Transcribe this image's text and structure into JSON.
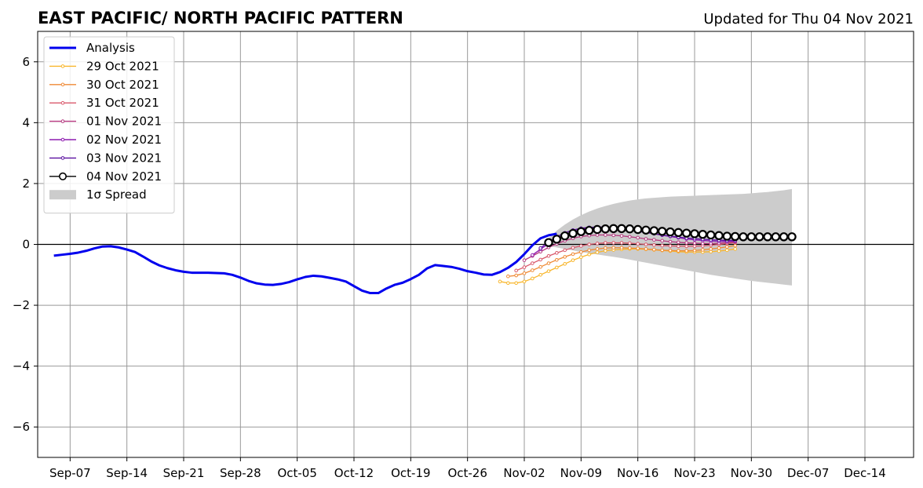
{
  "chart_data": {
    "type": "line",
    "title": "EAST PACIFIC/ NORTH PACIFIC PATTERN",
    "subtitle": "Updated for Thu 04 Nov 2021",
    "xlabel": "",
    "ylabel": "",
    "x_start": "2021-09-03",
    "x_end": "2021-12-20",
    "ylim": [
      -7,
      7
    ],
    "yticks": [
      -6,
      -4,
      -2,
      0,
      2,
      4,
      6
    ],
    "ytick_labels": [
      "−6",
      "−4",
      "−2",
      "0",
      "2",
      "4",
      "6"
    ],
    "xticks": [
      "2021-09-07",
      "2021-09-14",
      "2021-09-21",
      "2021-09-28",
      "2021-10-05",
      "2021-10-12",
      "2021-10-19",
      "2021-10-26",
      "2021-11-02",
      "2021-11-09",
      "2021-11-16",
      "2021-11-23",
      "2021-11-30",
      "2021-12-07",
      "2021-12-14"
    ],
    "xtick_labels": [
      "Sep-07",
      "Sep-14",
      "Sep-21",
      "Sep-28",
      "Oct-05",
      "Oct-12",
      "Oct-19",
      "Oct-26",
      "Nov-02",
      "Nov-09",
      "Nov-16",
      "Nov-23",
      "Nov-30",
      "Dec-07",
      "Dec-14"
    ],
    "grid": true,
    "legend_position": "top-left",
    "analysis": {
      "name": "Analysis",
      "color": "#0000ee",
      "start": "2021-09-05",
      "values": [
        -0.37,
        -0.34,
        -0.31,
        -0.27,
        -0.21,
        -0.13,
        -0.07,
        -0.06,
        -0.1,
        -0.17,
        -0.25,
        -0.4,
        -0.56,
        -0.69,
        -0.78,
        -0.85,
        -0.9,
        -0.93,
        -0.93,
        -0.93,
        -0.94,
        -0.95,
        -1.0,
        -1.09,
        -1.2,
        -1.28,
        -1.32,
        -1.33,
        -1.3,
        -1.24,
        -1.15,
        -1.07,
        -1.03,
        -1.05,
        -1.1,
        -1.15,
        -1.22,
        -1.37,
        -1.52,
        -1.6,
        -1.6,
        -1.45,
        -1.33,
        -1.26,
        -1.14,
        -1.0,
        -0.79,
        -0.68,
        -0.71,
        -0.74,
        -0.8,
        -0.88,
        -0.93,
        -0.99,
        -1.0,
        -0.91,
        -0.77,
        -0.58,
        -0.32,
        -0.03,
        0.2,
        0.3,
        0.35
      ]
    },
    "forecasts": [
      {
        "name": "29 Oct 2021",
        "color": "#f8b62b",
        "start": "2021-10-30",
        "values": [
          -1.22,
          -1.27,
          -1.27,
          -1.22,
          -1.12,
          -1.0,
          -0.88,
          -0.76,
          -0.64,
          -0.52,
          -0.42,
          -0.33,
          -0.26,
          -0.21,
          -0.18,
          -0.16,
          -0.15,
          -0.15,
          -0.16,
          -0.18,
          -0.2,
          -0.22,
          -0.24,
          -0.25,
          -0.25,
          -0.25,
          -0.24,
          -0.22,
          -0.19,
          -0.15
        ]
      },
      {
        "name": "30 Oct 2021",
        "color": "#ef8a35",
        "start": "2021-10-31",
        "values": [
          -1.05,
          -1.02,
          -0.95,
          -0.85,
          -0.74,
          -0.62,
          -0.51,
          -0.41,
          -0.32,
          -0.25,
          -0.19,
          -0.15,
          -0.12,
          -0.11,
          -0.11,
          -0.12,
          -0.13,
          -0.15,
          -0.17,
          -0.19,
          -0.2,
          -0.21,
          -0.21,
          -0.2,
          -0.18,
          -0.15,
          -0.12,
          -0.08,
          -0.04
        ]
      },
      {
        "name": "31 Oct 2021",
        "color": "#d9586b",
        "start": "2021-11-01",
        "values": [
          -0.86,
          -0.75,
          -0.62,
          -0.5,
          -0.38,
          -0.28,
          -0.19,
          -0.11,
          -0.05,
          0.0,
          0.03,
          0.05,
          0.05,
          0.05,
          0.04,
          0.02,
          0.0,
          -0.02,
          -0.04,
          -0.05,
          -0.06,
          -0.06,
          -0.06,
          -0.05,
          -0.03,
          0.0,
          0.03,
          0.06
        ]
      },
      {
        "name": "01 Nov 2021",
        "color": "#b5377f",
        "start": "2021-11-02",
        "values": [
          -0.52,
          -0.38,
          -0.24,
          -0.1,
          0.02,
          0.12,
          0.2,
          0.26,
          0.29,
          0.31,
          0.31,
          0.3,
          0.28,
          0.25,
          0.22,
          0.18,
          0.15,
          0.12,
          0.09,
          0.07,
          0.05,
          0.04,
          0.03,
          0.03,
          0.04,
          0.06,
          0.08
        ]
      },
      {
        "name": "02 Nov 2021",
        "color": "#8e1bb0",
        "start": "2021-11-03",
        "values": [
          -0.35,
          -0.16,
          0.02,
          0.18,
          0.32,
          0.42,
          0.5,
          0.55,
          0.57,
          0.57,
          0.56,
          0.53,
          0.49,
          0.45,
          0.4,
          0.35,
          0.3,
          0.26,
          0.22,
          0.18,
          0.15,
          0.13,
          0.11,
          0.1,
          0.1,
          0.11
        ]
      },
      {
        "name": "03 Nov 2021",
        "color": "#5a10a0",
        "start": "2021-11-04",
        "values": [
          -0.12,
          0.08,
          0.25,
          0.38,
          0.47,
          0.53,
          0.56,
          0.57,
          0.56,
          0.54,
          0.51,
          0.47,
          0.43,
          0.39,
          0.35,
          0.31,
          0.27,
          0.24,
          0.21,
          0.19,
          0.17,
          0.15,
          0.14,
          0.13,
          0.13
        ]
      },
      {
        "name": "04 Nov 2021",
        "color": "#000000",
        "start": "2021-11-05",
        "values": [
          0.06,
          0.17,
          0.28,
          0.36,
          0.42,
          0.46,
          0.49,
          0.51,
          0.52,
          0.52,
          0.51,
          0.49,
          0.47,
          0.45,
          0.43,
          0.41,
          0.39,
          0.37,
          0.35,
          0.33,
          0.31,
          0.29,
          0.27,
          0.26,
          0.25,
          0.25,
          0.25,
          0.25,
          0.25,
          0.25,
          0.25
        ]
      }
    ],
    "spread": {
      "name": "1σ Spread",
      "color": "#cccccc",
      "start": "2021-11-05",
      "upper": [
        0.2,
        0.45,
        0.65,
        0.82,
        0.96,
        1.08,
        1.18,
        1.26,
        1.33,
        1.39,
        1.44,
        1.48,
        1.51,
        1.53,
        1.55,
        1.57,
        1.58,
        1.59,
        1.6,
        1.61,
        1.62,
        1.63,
        1.64,
        1.65,
        1.66,
        1.68,
        1.7,
        1.72,
        1.75,
        1.78,
        1.82
      ],
      "lower": [
        -0.05,
        -0.1,
        -0.15,
        -0.2,
        -0.25,
        -0.29,
        -0.33,
        -0.37,
        -0.41,
        -0.45,
        -0.5,
        -0.55,
        -0.6,
        -0.65,
        -0.7,
        -0.75,
        -0.8,
        -0.85,
        -0.9,
        -0.95,
        -1.0,
        -1.04,
        -1.08,
        -1.12,
        -1.16,
        -1.2,
        -1.23,
        -1.26,
        -1.29,
        -1.32,
        -1.35
      ]
    }
  }
}
